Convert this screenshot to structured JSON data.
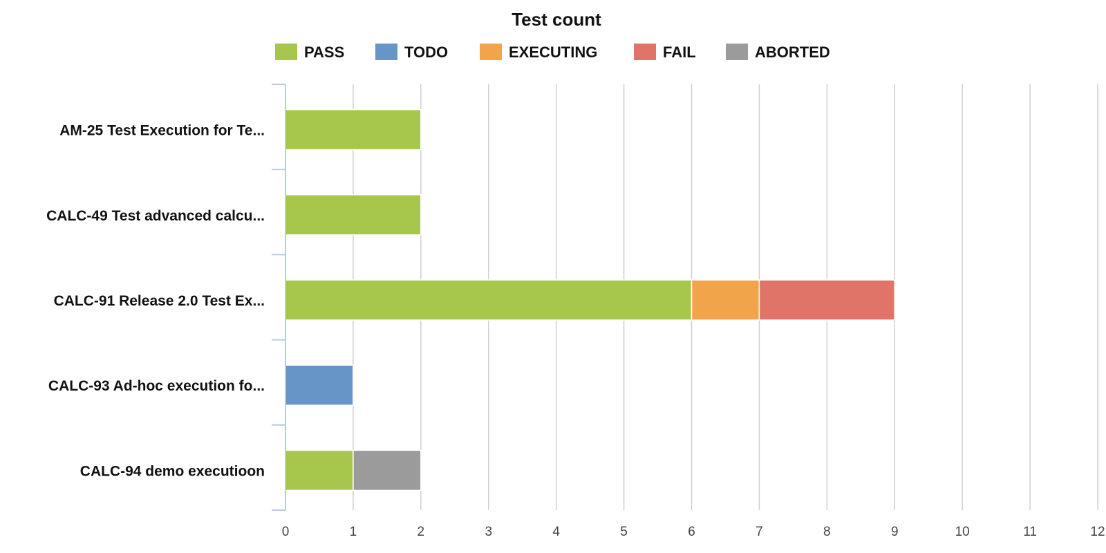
{
  "chart_data": {
    "type": "bar",
    "orientation": "horizontal",
    "stacked": true,
    "title": "Test count",
    "categories": [
      "AM-25 Test Execution for Te...",
      "CALC-49 Test advanced calcu...",
      "CALC-91 Release 2.0 Test Ex...",
      "CALC-93 Ad-hoc execution fo...",
      "CALC-94 demo executioon"
    ],
    "series": [
      {
        "name": "PASS",
        "color": "#a6c64c",
        "values": [
          2,
          2,
          6,
          0,
          1
        ]
      },
      {
        "name": "TODO",
        "color": "#6895c8",
        "values": [
          0,
          0,
          0,
          1,
          0
        ]
      },
      {
        "name": "EXECUTING",
        "color": "#f2a44b",
        "values": [
          0,
          0,
          1,
          0,
          0
        ]
      },
      {
        "name": "FAIL",
        "color": "#e07468",
        "values": [
          0,
          0,
          2,
          0,
          0
        ]
      },
      {
        "name": "ABORTED",
        "color": "#9b9b9b",
        "values": [
          0,
          0,
          0,
          0,
          1
        ]
      }
    ],
    "xlim": [
      0,
      12
    ],
    "xticks": [
      "0",
      "1",
      "2",
      "3",
      "4",
      "5",
      "6",
      "7",
      "8",
      "9",
      "10",
      "11",
      "12"
    ],
    "grid": true,
    "legend_position": "top"
  }
}
